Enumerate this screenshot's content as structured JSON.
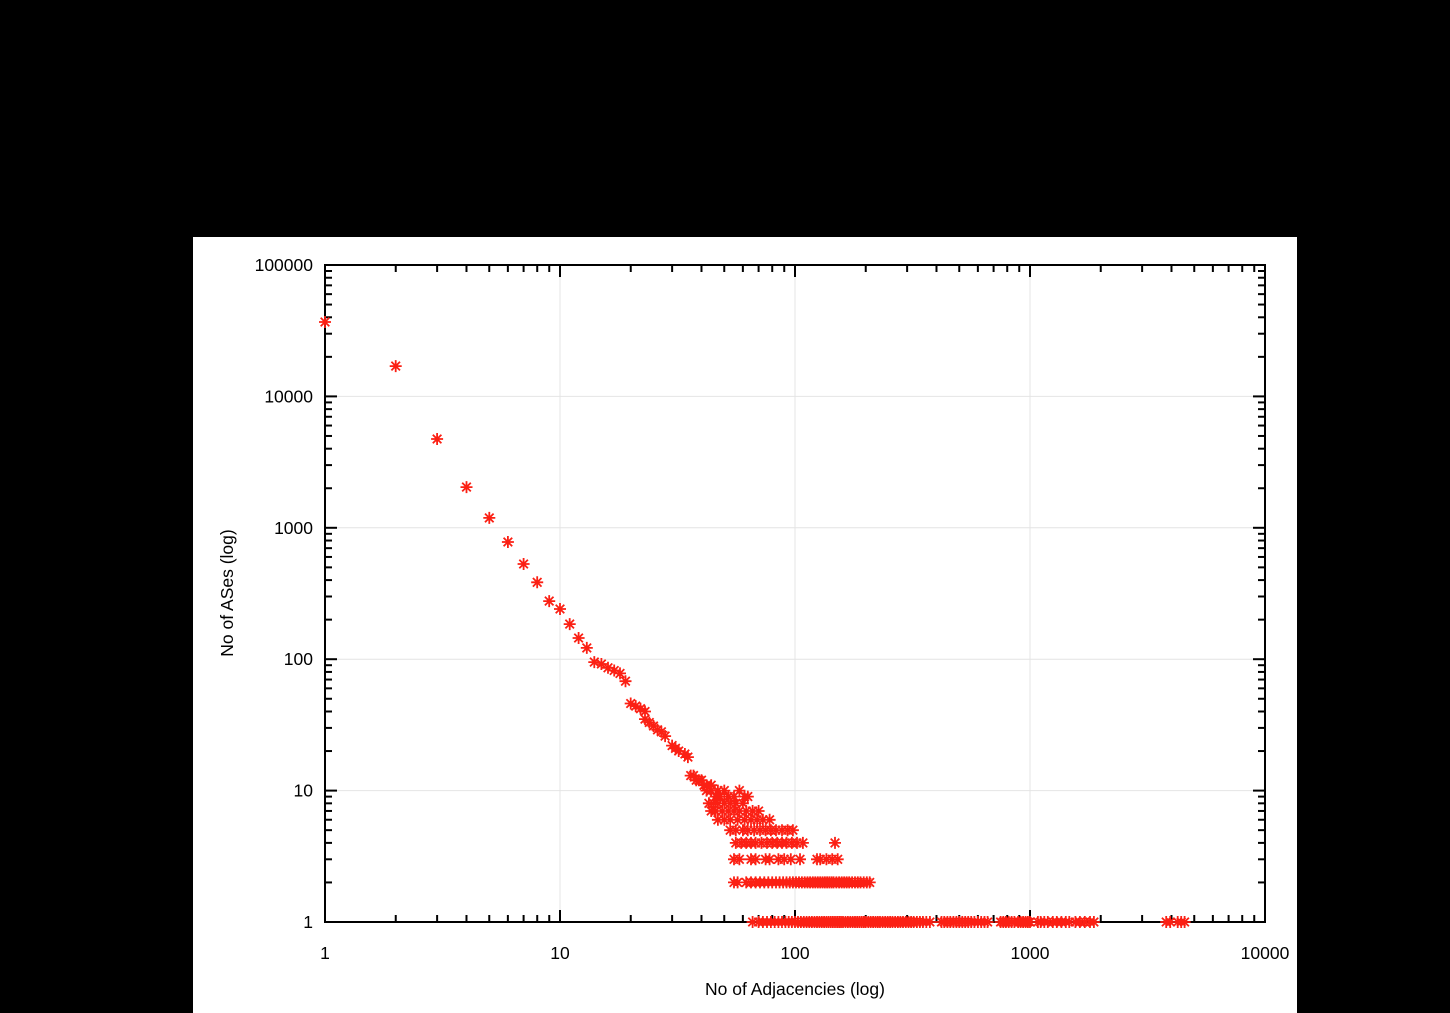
{
  "page": {
    "background_color": "#000000",
    "figure_background_color": "#ffffff"
  },
  "chart_data": {
    "type": "scatter",
    "title": "",
    "xlabel": "No of Adjacencies (log)",
    "ylabel": "No of ASes (log)",
    "x_scale": "log",
    "y_scale": "log",
    "xlim": [
      1,
      10000
    ],
    "ylim": [
      1,
      100000
    ],
    "x_tick_labels": [
      "1",
      "10",
      "100",
      "1000",
      "10000"
    ],
    "y_tick_labels": [
      "1",
      "10",
      "100",
      "1000",
      "10000",
      "100000"
    ],
    "grid": true,
    "legend": "none",
    "marker": "asterisk",
    "marker_color": "#fb2014",
    "series_name": "AS degree distribution",
    "points": [
      [
        1,
        36800
      ],
      [
        2,
        17000
      ],
      [
        3,
        4740
      ],
      [
        4,
        2040
      ],
      [
        5,
        1190
      ],
      [
        6,
        780
      ],
      [
        7,
        530
      ],
      [
        8,
        385
      ],
      [
        9,
        277
      ],
      [
        10,
        241
      ],
      [
        11,
        185
      ],
      [
        12,
        145
      ],
      [
        13,
        122
      ],
      [
        14,
        95
      ],
      [
        15,
        92
      ],
      [
        16,
        86
      ],
      [
        17,
        82
      ],
      [
        18,
        78
      ],
      [
        19,
        68
      ],
      [
        20,
        46
      ],
      [
        21,
        44
      ],
      [
        22,
        42
      ],
      [
        23,
        40
      ],
      [
        23,
        35
      ],
      [
        24,
        33
      ],
      [
        25,
        31
      ],
      [
        26,
        29
      ],
      [
        27,
        28
      ],
      [
        28,
        26
      ],
      [
        30,
        22
      ],
      [
        31,
        21
      ],
      [
        32,
        20
      ],
      [
        34,
        19
      ],
      [
        35,
        18
      ],
      [
        36,
        13
      ],
      [
        37,
        13
      ],
      [
        38,
        12
      ],
      [
        39,
        12
      ],
      [
        40,
        12
      ],
      [
        41,
        11
      ],
      [
        42,
        11
      ],
      [
        44,
        11
      ],
      [
        42,
        10
      ],
      [
        44,
        10
      ],
      [
        46,
        9
      ],
      [
        47,
        10
      ],
      [
        48,
        9
      ],
      [
        50,
        10
      ],
      [
        52,
        9
      ],
      [
        55,
        9
      ],
      [
        58,
        10
      ],
      [
        61,
        9
      ],
      [
        63,
        9
      ],
      [
        43,
        8
      ],
      [
        45,
        8
      ],
      [
        47,
        8
      ],
      [
        50,
        8
      ],
      [
        53,
        8
      ],
      [
        56,
        8
      ],
      [
        60,
        8
      ],
      [
        44,
        7
      ],
      [
        46,
        7
      ],
      [
        49,
        7
      ],
      [
        52,
        7
      ],
      [
        55,
        7
      ],
      [
        58,
        7
      ],
      [
        62,
        7
      ],
      [
        66,
        7
      ],
      [
        70,
        7
      ],
      [
        47,
        6
      ],
      [
        50,
        6
      ],
      [
        53,
        6
      ],
      [
        57,
        6
      ],
      [
        61,
        6
      ],
      [
        65,
        6
      ],
      [
        69,
        6
      ],
      [
        73,
        6
      ],
      [
        78,
        6
      ],
      [
        53,
        5
      ],
      [
        56,
        5
      ],
      [
        60,
        5
      ],
      [
        63,
        5
      ],
      [
        67,
        5
      ],
      [
        71,
        5
      ],
      [
        75,
        5
      ],
      [
        79,
        5
      ],
      [
        83,
        5
      ],
      [
        88,
        5
      ],
      [
        93,
        5
      ],
      [
        98,
        5
      ],
      [
        56,
        4
      ],
      [
        59,
        4
      ],
      [
        62,
        4
      ],
      [
        65,
        4
      ],
      [
        68,
        4
      ],
      [
        72,
        4
      ],
      [
        76,
        4
      ],
      [
        80,
        4
      ],
      [
        84,
        4
      ],
      [
        88,
        4
      ],
      [
        92,
        4
      ],
      [
        97,
        4
      ],
      [
        102,
        4
      ],
      [
        108,
        4
      ],
      [
        148,
        4
      ],
      [
        55,
        3
      ],
      [
        58,
        3
      ],
      [
        65,
        3
      ],
      [
        68,
        3
      ],
      [
        75,
        3
      ],
      [
        78,
        3
      ],
      [
        85,
        3
      ],
      [
        90,
        3
      ],
      [
        96,
        3
      ],
      [
        105,
        3
      ],
      [
        124,
        3
      ],
      [
        128,
        3
      ],
      [
        136,
        3
      ],
      [
        144,
        3
      ],
      [
        152,
        3
      ],
      [
        55,
        2
      ],
      [
        57,
        2
      ],
      [
        62,
        2
      ],
      [
        65,
        2
      ],
      [
        68,
        2
      ],
      [
        71,
        2
      ],
      [
        74,
        2
      ],
      [
        77,
        2
      ],
      [
        80,
        2
      ],
      [
        83,
        2
      ],
      [
        86,
        2
      ],
      [
        89,
        2
      ],
      [
        92,
        2
      ],
      [
        95,
        2
      ],
      [
        98,
        2
      ],
      [
        101,
        2
      ],
      [
        104,
        2
      ],
      [
        107,
        2
      ],
      [
        110,
        2
      ],
      [
        113,
        2
      ],
      [
        116,
        2
      ],
      [
        119,
        2
      ],
      [
        122,
        2
      ],
      [
        125,
        2
      ],
      [
        128,
        2
      ],
      [
        131,
        2
      ],
      [
        134,
        2
      ],
      [
        137,
        2
      ],
      [
        140,
        2
      ],
      [
        143,
        2
      ],
      [
        146,
        2
      ],
      [
        150,
        2
      ],
      [
        154,
        2
      ],
      [
        158,
        2
      ],
      [
        162,
        2
      ],
      [
        166,
        2
      ],
      [
        170,
        2
      ],
      [
        175,
        2
      ],
      [
        180,
        2
      ],
      [
        185,
        2
      ],
      [
        190,
        2
      ],
      [
        196,
        2
      ],
      [
        202,
        2
      ],
      [
        208,
        2
      ],
      [
        66,
        1
      ],
      [
        70,
        1
      ],
      [
        73,
        1
      ],
      [
        76,
        1
      ],
      [
        79,
        1
      ],
      [
        82,
        1
      ],
      [
        85,
        1
      ],
      [
        88,
        1
      ],
      [
        91,
        1
      ],
      [
        94,
        1
      ],
      [
        97,
        1
      ],
      [
        100,
        1
      ],
      [
        103,
        1
      ],
      [
        106,
        1
      ],
      [
        109,
        1
      ],
      [
        112,
        1
      ],
      [
        115,
        1
      ],
      [
        118,
        1
      ],
      [
        121,
        1
      ],
      [
        124,
        1
      ],
      [
        127,
        1
      ],
      [
        130,
        1
      ],
      [
        133,
        1
      ],
      [
        136,
        1
      ],
      [
        139,
        1
      ],
      [
        142,
        1
      ],
      [
        145,
        1
      ],
      [
        148,
        1
      ],
      [
        151,
        1
      ],
      [
        154,
        1
      ],
      [
        157,
        1
      ],
      [
        160,
        1
      ],
      [
        164,
        1
      ],
      [
        168,
        1
      ],
      [
        172,
        1
      ],
      [
        176,
        1
      ],
      [
        180,
        1
      ],
      [
        184,
        1
      ],
      [
        188,
        1
      ],
      [
        192,
        1
      ],
      [
        196,
        1
      ],
      [
        200,
        1
      ],
      [
        205,
        1
      ],
      [
        210,
        1
      ],
      [
        215,
        1
      ],
      [
        220,
        1
      ],
      [
        225,
        1
      ],
      [
        230,
        1
      ],
      [
        236,
        1
      ],
      [
        242,
        1
      ],
      [
        248,
        1
      ],
      [
        254,
        1
      ],
      [
        260,
        1
      ],
      [
        267,
        1
      ],
      [
        274,
        1
      ],
      [
        281,
        1
      ],
      [
        288,
        1
      ],
      [
        296,
        1
      ],
      [
        304,
        1
      ],
      [
        312,
        1
      ],
      [
        320,
        1
      ],
      [
        330,
        1
      ],
      [
        340,
        1
      ],
      [
        350,
        1
      ],
      [
        362,
        1
      ],
      [
        375,
        1
      ],
      [
        420,
        1
      ],
      [
        432,
        1
      ],
      [
        445,
        1
      ],
      [
        458,
        1
      ],
      [
        472,
        1
      ],
      [
        486,
        1
      ],
      [
        500,
        1
      ],
      [
        515,
        1
      ],
      [
        530,
        1
      ],
      [
        546,
        1
      ],
      [
        562,
        1
      ],
      [
        580,
        1
      ],
      [
        600,
        1
      ],
      [
        620,
        1
      ],
      [
        640,
        1
      ],
      [
        660,
        1
      ],
      [
        750,
        1
      ],
      [
        770,
        1
      ],
      [
        790,
        1
      ],
      [
        812,
        1
      ],
      [
        835,
        1
      ],
      [
        858,
        1
      ],
      [
        890,
        1
      ],
      [
        912,
        1
      ],
      [
        935,
        1
      ],
      [
        958,
        1
      ],
      [
        980,
        1
      ],
      [
        1000,
        1
      ],
      [
        1080,
        1
      ],
      [
        1110,
        1
      ],
      [
        1150,
        1
      ],
      [
        1190,
        1
      ],
      [
        1250,
        1
      ],
      [
        1300,
        1
      ],
      [
        1360,
        1
      ],
      [
        1420,
        1
      ],
      [
        1470,
        1
      ],
      [
        1560,
        1
      ],
      [
        1630,
        1
      ],
      [
        1710,
        1
      ],
      [
        1800,
        1
      ],
      [
        1870,
        1
      ],
      [
        3800,
        1
      ],
      [
        3950,
        1
      ],
      [
        4250,
        1
      ],
      [
        4400,
        1
      ],
      [
        4550,
        1
      ]
    ]
  }
}
